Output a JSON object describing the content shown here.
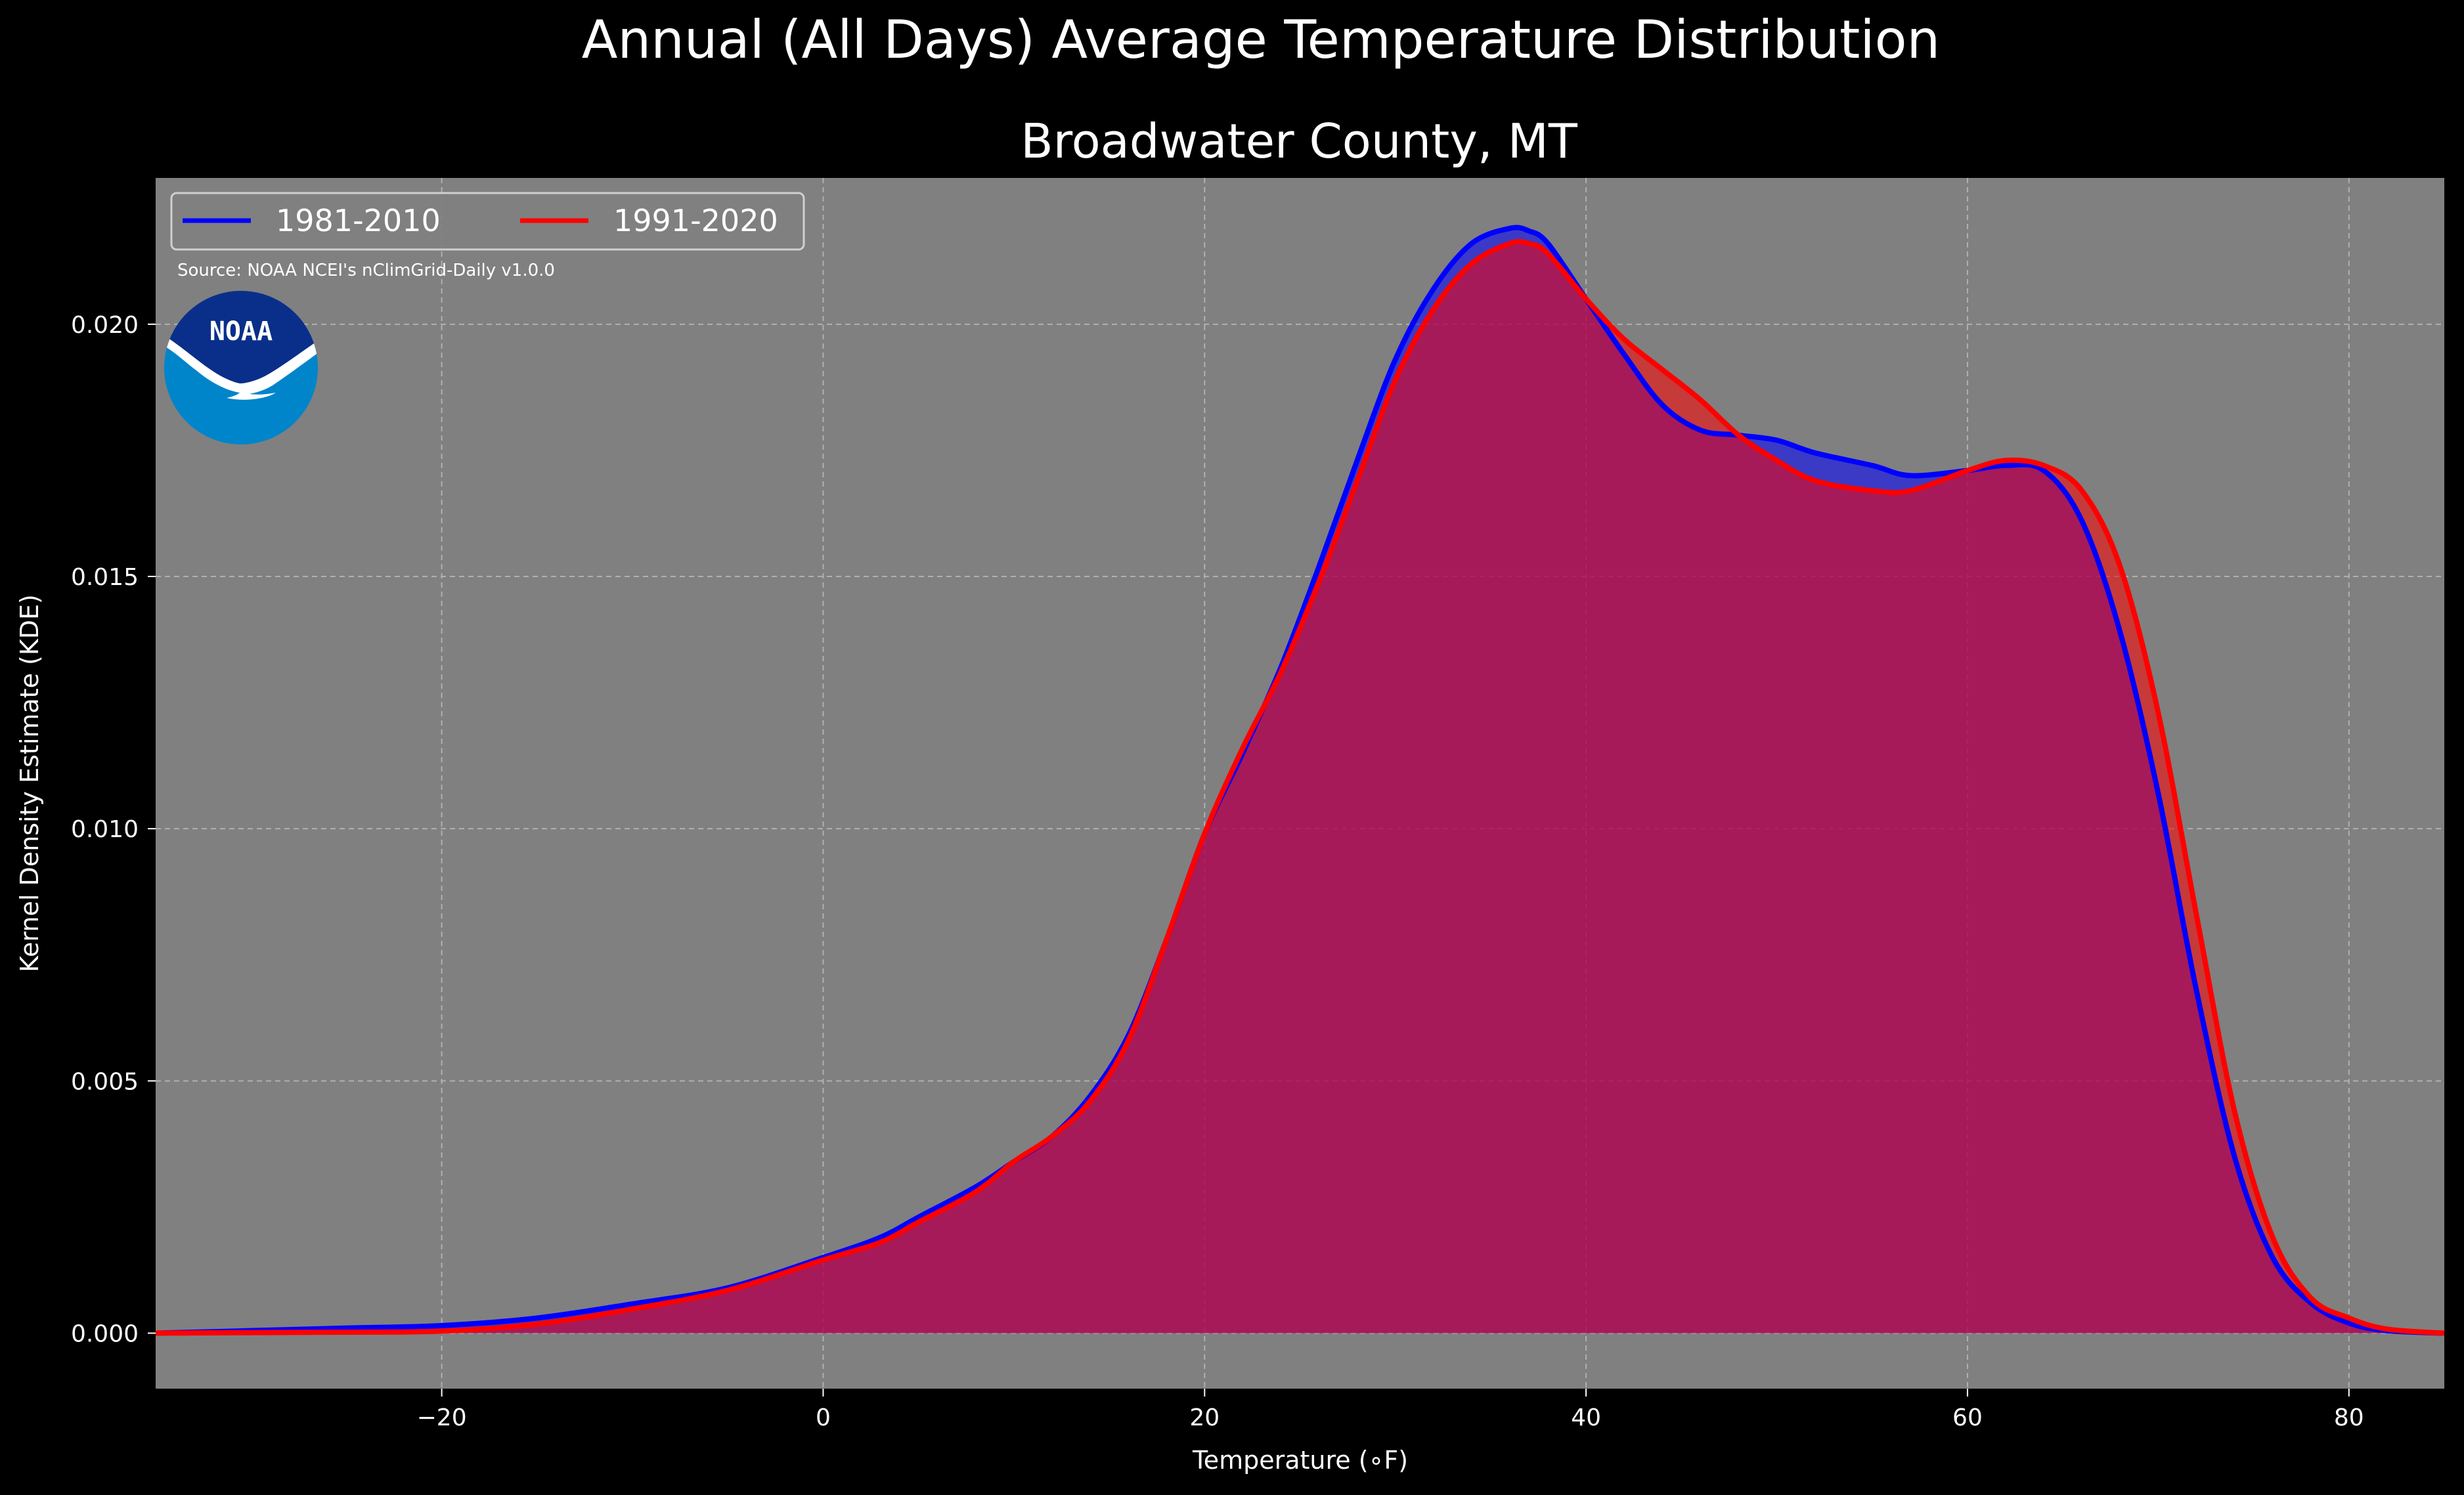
{
  "figure": {
    "suptitle": "Annual (All Days) Average Temperature Distribution",
    "source": "Source: NOAA NCEI's nClimGrid-Daily v1.0.0",
    "logo_text": "NOAA"
  },
  "colors": {
    "background": "#000000",
    "plot_background": "#808080",
    "grid": "#b0b0b0",
    "series_1981": "#0000ff",
    "series_1991": "#ff0000",
    "overlap_fill": "#9e1f5c",
    "logo_blue_dark": "#0a2f8a",
    "logo_blue_light": "#0085ca"
  },
  "chart_data": {
    "type": "area",
    "title": "Broadwater County, MT",
    "xlabel": "Temperature (∘F)",
    "ylabel": "Kernel Density Estimate (KDE)",
    "xlim": [
      -35,
      85
    ],
    "ylim": [
      -0.0011,
      0.0229
    ],
    "xticks": [
      -20,
      0,
      20,
      40,
      60,
      80
    ],
    "xtick_labels": [
      "−20",
      "0",
      "20",
      "40",
      "60",
      "80"
    ],
    "yticks": [
      0.0,
      0.005,
      0.01,
      0.015,
      0.02
    ],
    "ytick_labels": [
      "0.000",
      "0.005",
      "0.010",
      "0.015",
      "0.020"
    ],
    "grid": true,
    "legend_position": "top-left",
    "series": [
      {
        "name": "1981-2010",
        "color": "#0000ff",
        "points": [
          [
            -35,
            0.0
          ],
          [
            -30,
            5e-05
          ],
          [
            -25,
            0.0001
          ],
          [
            -20,
            0.00015
          ],
          [
            -15,
            0.0003
          ],
          [
            -10,
            0.00058
          ],
          [
            -5,
            0.0009
          ],
          [
            0,
            0.0015
          ],
          [
            3,
            0.0019
          ],
          [
            5,
            0.0023
          ],
          [
            8,
            0.0029
          ],
          [
            10,
            0.0034
          ],
          [
            12,
            0.0039
          ],
          [
            14,
            0.0047
          ],
          [
            16,
            0.0059
          ],
          [
            18,
            0.0078
          ],
          [
            20,
            0.0099
          ],
          [
            22,
            0.0115
          ],
          [
            24,
            0.0132
          ],
          [
            26,
            0.0152
          ],
          [
            28,
            0.0173
          ],
          [
            30,
            0.0193
          ],
          [
            32,
            0.0207
          ],
          [
            34,
            0.0216
          ],
          [
            36,
            0.0219
          ],
          [
            37,
            0.02185
          ],
          [
            38,
            0.0216
          ],
          [
            40,
            0.0205
          ],
          [
            42,
            0.0194
          ],
          [
            44,
            0.0184
          ],
          [
            46,
            0.0179
          ],
          [
            48,
            0.0178
          ],
          [
            50,
            0.0177
          ],
          [
            52,
            0.01745
          ],
          [
            55,
            0.0172
          ],
          [
            57,
            0.017
          ],
          [
            60,
            0.0171
          ],
          [
            62,
            0.0172
          ],
          [
            64,
            0.0171
          ],
          [
            66,
            0.0161
          ],
          [
            68,
            0.0139
          ],
          [
            70,
            0.0107
          ],
          [
            72,
            0.0068
          ],
          [
            74,
            0.0035
          ],
          [
            76,
            0.0015
          ],
          [
            78,
            0.0006
          ],
          [
            80,
            0.0002
          ],
          [
            82,
            5e-05
          ],
          [
            85,
            0.0
          ]
        ]
      },
      {
        "name": "1991-2020",
        "color": "#ff0000",
        "points": [
          [
            -35,
            0.0
          ],
          [
            -30,
            1e-05
          ],
          [
            -25,
            2e-05
          ],
          [
            -20,
            4e-05
          ],
          [
            -15,
            0.00018
          ],
          [
            -10,
            0.00048
          ],
          [
            -5,
            0.00085
          ],
          [
            0,
            0.00145
          ],
          [
            3,
            0.0018
          ],
          [
            5,
            0.0022
          ],
          [
            8,
            0.0028
          ],
          [
            10,
            0.0034
          ],
          [
            12,
            0.0039
          ],
          [
            14,
            0.0046
          ],
          [
            16,
            0.0058
          ],
          [
            18,
            0.0078
          ],
          [
            20,
            0.0099
          ],
          [
            22,
            0.0116
          ],
          [
            24,
            0.0131
          ],
          [
            26,
            0.0149
          ],
          [
            28,
            0.0169
          ],
          [
            30,
            0.0189
          ],
          [
            32,
            0.0203
          ],
          [
            34,
            0.0212
          ],
          [
            36,
            0.0216
          ],
          [
            37,
            0.0216
          ],
          [
            38,
            0.0214
          ],
          [
            40,
            0.0205
          ],
          [
            42,
            0.0197
          ],
          [
            44,
            0.0191
          ],
          [
            46,
            0.0185
          ],
          [
            48,
            0.0178
          ],
          [
            50,
            0.0173
          ],
          [
            52,
            0.0169
          ],
          [
            55,
            0.0167
          ],
          [
            57,
            0.0167
          ],
          [
            60,
            0.0171
          ],
          [
            62,
            0.0173
          ],
          [
            64,
            0.0172
          ],
          [
            66,
            0.0167
          ],
          [
            68,
            0.0152
          ],
          [
            70,
            0.0123
          ],
          [
            72,
            0.0083
          ],
          [
            74,
            0.0044
          ],
          [
            76,
            0.0019
          ],
          [
            78,
            0.0007
          ],
          [
            80,
            0.0003
          ],
          [
            82,
            8e-05
          ],
          [
            85,
            0.0
          ]
        ]
      }
    ]
  }
}
